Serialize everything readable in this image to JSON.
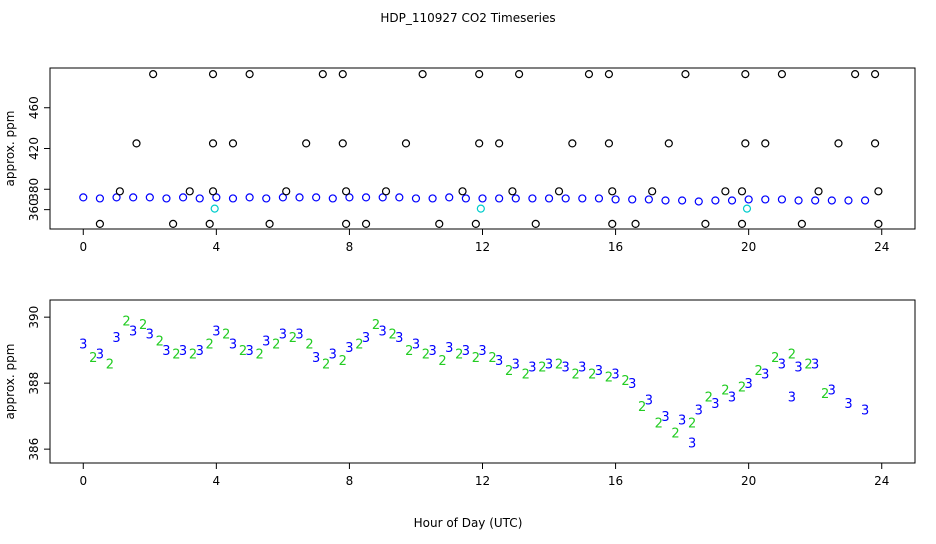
{
  "chart_data": [
    {
      "type": "scatter",
      "title": "HDP_110927  CO2 Timeseries",
      "ylabel": "approx. ppm",
      "xlim": [
        -1,
        25
      ],
      "ylim": [
        341,
        499
      ],
      "xticks": [
        0,
        4,
        8,
        12,
        16,
        20,
        24
      ],
      "yticks": [
        360,
        380,
        420,
        460
      ],
      "series": [
        {
          "color": "#0000ff",
          "marker": "circle",
          "x": [
            0,
            0.5,
            1,
            1.5,
            2,
            2.5,
            3,
            3.5,
            4,
            4.5,
            5,
            5.5,
            6,
            6.5,
            7,
            7.5,
            8,
            8.5,
            9,
            9.5,
            10,
            10.5,
            11,
            11.5,
            12,
            12.5,
            13,
            13.5,
            14,
            14.5,
            15,
            15.5,
            16,
            16.5,
            17,
            17.5,
            18,
            18.5,
            19,
            19.5,
            20,
            20.5,
            21,
            21.5,
            22,
            22.5,
            23,
            23.5
          ],
          "values": [
            372,
            371,
            372,
            372,
            372,
            371,
            372,
            371,
            372,
            371,
            372,
            371,
            372,
            372,
            372,
            371,
            372,
            372,
            372,
            372,
            371,
            371,
            372,
            371,
            371,
            371,
            371,
            371,
            371,
            371,
            371,
            371,
            370,
            370,
            370,
            369,
            369,
            368,
            369,
            369,
            370,
            370,
            370,
            369,
            369,
            369,
            369,
            369
          ]
        },
        {
          "color": "#000000",
          "marker": "circle",
          "x": [
            2.1,
            3.9,
            5.0,
            7.2,
            7.8,
            10.2,
            11.9,
            13.1,
            15.2,
            15.8,
            18.1,
            19.9,
            21.0,
            23.2,
            23.8,
            0.5,
            2.7,
            3.8,
            5.6,
            7.9,
            8.5,
            10.7,
            11.8,
            13.6,
            15.9,
            16.6,
            18.7,
            19.8,
            21.6,
            23.9,
            1.6,
            3.9,
            4.5,
            6.7,
            7.8,
            9.7,
            11.9,
            12.5,
            14.7,
            15.8,
            17.6,
            19.9,
            20.5,
            22.7,
            23.8,
            1.1,
            3.2,
            3.9,
            6.1,
            7.9,
            9.1,
            11.4,
            12.9,
            14.3,
            15.9,
            17.1,
            19.3,
            19.8,
            22.1,
            23.9
          ],
          "values": [
            493,
            493,
            493,
            493,
            493,
            493,
            493,
            493,
            493,
            493,
            493,
            493,
            493,
            493,
            493,
            346,
            346,
            346,
            346,
            346,
            346,
            346,
            346,
            346,
            346,
            346,
            346,
            346,
            346,
            346,
            425,
            425,
            425,
            425,
            425,
            425,
            425,
            425,
            425,
            425,
            425,
            425,
            425,
            425,
            425,
            378,
            378,
            378,
            378,
            378,
            378,
            378,
            378,
            378,
            378,
            378,
            378,
            378,
            378,
            378
          ]
        },
        {
          "color": "#00cccc",
          "marker": "circle",
          "x": [
            3.95,
            11.95,
            19.95
          ],
          "values": [
            361,
            361,
            361
          ]
        }
      ]
    },
    {
      "type": "scatter",
      "ylabel": "approx. ppm",
      "xlabel": "Hour of Day (UTC)",
      "xlim": [
        -1,
        25
      ],
      "ylim": [
        385.58,
        390.52
      ],
      "xticks": [
        0,
        4,
        8,
        12,
        16,
        20,
        24
      ],
      "yticks": [
        386,
        388,
        390
      ],
      "series": [
        {
          "color": "#22cc22",
          "marker": "2",
          "x": [
            0.3,
            0.8,
            1.3,
            1.8,
            2.3,
            2.8,
            3.3,
            3.8,
            4.3,
            4.8,
            5.3,
            5.8,
            6.3,
            6.8,
            7.3,
            7.8,
            8.3,
            8.8,
            9.3,
            9.8,
            10.3,
            10.8,
            11.3,
            11.8,
            12.3,
            12.8,
            13.3,
            13.8,
            14.3,
            14.8,
            15.3,
            15.8,
            16.3,
            16.8,
            17.3,
            17.8,
            18.3,
            18.8,
            19.3,
            19.8,
            20.3,
            20.8,
            21.3,
            21.8,
            22.3
          ],
          "values": [
            388.8,
            388.6,
            389.9,
            389.8,
            389.3,
            388.9,
            388.9,
            389.2,
            389.5,
            389.0,
            388.9,
            389.2,
            389.4,
            389.2,
            388.6,
            388.7,
            389.2,
            389.8,
            389.5,
            389.0,
            388.9,
            388.7,
            388.9,
            388.8,
            388.8,
            388.4,
            388.3,
            388.5,
            388.6,
            388.3,
            388.3,
            388.2,
            388.1,
            387.3,
            386.8,
            386.5,
            386.8,
            387.6,
            387.8,
            387.9,
            388.4,
            388.8,
            388.9,
            388.6,
            387.7
          ]
        },
        {
          "color": "#0000ff",
          "marker": "3",
          "x": [
            0,
            0.5,
            1,
            1.5,
            2,
            2.5,
            3,
            3.5,
            4,
            4.5,
            5,
            5.5,
            6,
            6.5,
            7,
            7.5,
            8,
            8.5,
            9,
            9.5,
            10,
            10.5,
            11,
            11.5,
            12,
            12.5,
            13,
            13.5,
            14,
            14.5,
            15,
            15.5,
            16,
            16.5,
            17,
            17.5,
            18,
            18.3,
            18.5,
            19,
            19.5,
            20,
            20.5,
            21,
            21.3,
            21.5,
            22,
            22.5,
            23,
            23.5
          ],
          "values": [
            389.2,
            388.9,
            389.4,
            389.6,
            389.5,
            389.0,
            389.0,
            389.0,
            389.6,
            389.2,
            389.0,
            389.3,
            389.5,
            389.5,
            388.8,
            388.9,
            389.1,
            389.4,
            389.6,
            389.4,
            389.2,
            389.0,
            389.1,
            389.0,
            389.0,
            388.7,
            388.6,
            388.5,
            388.6,
            388.5,
            388.5,
            388.4,
            388.3,
            388.0,
            387.5,
            387.0,
            386.9,
            386.2,
            387.2,
            387.4,
            387.6,
            388.0,
            388.3,
            388.6,
            387.6,
            388.5,
            388.6,
            387.8,
            387.4,
            387.2
          ]
        }
      ]
    }
  ]
}
